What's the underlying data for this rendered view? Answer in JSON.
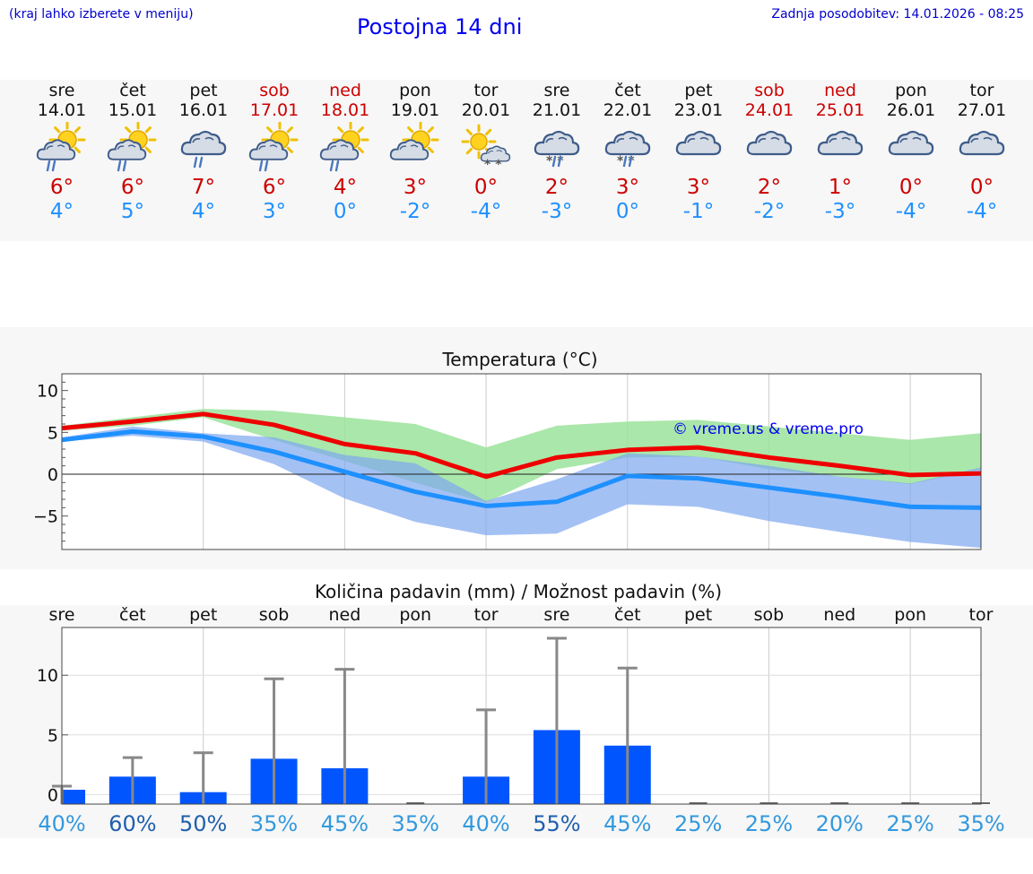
{
  "header": {
    "hint": "(kraj lahko izberete v meniju)",
    "title": "Postojna 14 dni",
    "updated": "Zadnja posodobitev: 14.01.2026 - 08:25"
  },
  "days": [
    {
      "name": "sre",
      "date": "14.01",
      "weekend": false,
      "icon": "sun-cloud-rain-icon",
      "hi": "6°",
      "lo": "4°"
    },
    {
      "name": "čet",
      "date": "15.01",
      "weekend": false,
      "icon": "sun-cloud-rain-icon",
      "hi": "6°",
      "lo": "5°"
    },
    {
      "name": "pet",
      "date": "16.01",
      "weekend": false,
      "icon": "cloud-rain-icon",
      "hi": "7°",
      "lo": "4°"
    },
    {
      "name": "sob",
      "date": "17.01",
      "weekend": true,
      "icon": "sun-cloud-rain-icon",
      "hi": "6°",
      "lo": "3°"
    },
    {
      "name": "ned",
      "date": "18.01",
      "weekend": true,
      "icon": "sun-cloud-rain-icon",
      "hi": "4°",
      "lo": "0°"
    },
    {
      "name": "pon",
      "date": "19.01",
      "weekend": false,
      "icon": "sun-cloud-icon",
      "hi": "3°",
      "lo": "-2°"
    },
    {
      "name": "tor",
      "date": "20.01",
      "weekend": false,
      "icon": "sun-cloud-snow-icon",
      "hi": "0°",
      "lo": "-4°"
    },
    {
      "name": "sre",
      "date": "21.01",
      "weekend": false,
      "icon": "cloud-sleet-icon",
      "hi": "2°",
      "lo": "-3°"
    },
    {
      "name": "čet",
      "date": "22.01",
      "weekend": false,
      "icon": "cloud-sleet-icon",
      "hi": "3°",
      "lo": "0°"
    },
    {
      "name": "pet",
      "date": "23.01",
      "weekend": false,
      "icon": "cloud-icon",
      "hi": "3°",
      "lo": "-1°"
    },
    {
      "name": "sob",
      "date": "24.01",
      "weekend": true,
      "icon": "cloud-icon",
      "hi": "2°",
      "lo": "-2°"
    },
    {
      "name": "ned",
      "date": "25.01",
      "weekend": true,
      "icon": "cloud-icon",
      "hi": "1°",
      "lo": "-3°"
    },
    {
      "name": "pon",
      "date": "26.01",
      "weekend": false,
      "icon": "cloud-icon",
      "hi": "0°",
      "lo": "-4°"
    },
    {
      "name": "tor",
      "date": "27.01",
      "weekend": false,
      "icon": "cloud-icon",
      "hi": "0°",
      "lo": "-4°"
    }
  ],
  "chart_data": [
    {
      "type": "line",
      "title": "Temperatura (°C)",
      "watermark": "© vreme.us & vreme.pro",
      "xlabel": "",
      "ylabel": "",
      "x": [
        0,
        1,
        2,
        3,
        4,
        5,
        6,
        7,
        8,
        9,
        10,
        11,
        12,
        13
      ],
      "ylim": [
        -9,
        12
      ],
      "yticks": [
        10,
        5,
        0,
        -5
      ],
      "ytick_labels": [
        "10",
        "5",
        "0",
        "−5"
      ],
      "grid": true,
      "series": [
        {
          "name": "max",
          "color": "#ee0000",
          "values": [
            5.5,
            6.3,
            7.2,
            5.9,
            3.6,
            2.5,
            -0.3,
            2.0,
            2.9,
            3.2,
            2.0,
            1.0,
            -0.1,
            0.1
          ]
        },
        {
          "name": "min",
          "color": "#1e90ff",
          "values": [
            4.1,
            5.1,
            4.5,
            2.7,
            0.3,
            -2.1,
            -3.8,
            -3.3,
            -0.2,
            -0.5,
            -1.6,
            -2.7,
            -3.9,
            -4.0
          ]
        }
      ],
      "bands": [
        {
          "name": "max-range",
          "color": "#9be39b",
          "upper": [
            5.8,
            6.8,
            7.8,
            7.6,
            6.8,
            6.0,
            3.2,
            5.8,
            6.3,
            6.5,
            5.7,
            4.9,
            4.1,
            4.9
          ],
          "lower": [
            5.2,
            5.8,
            6.8,
            4.1,
            1.6,
            -1.0,
            -3.4,
            0.6,
            2.0,
            2.1,
            0.6,
            -0.3,
            -1.2,
            0.6
          ]
        },
        {
          "name": "min-range",
          "color": "#7da6f0",
          "upper": [
            4.4,
            5.7,
            4.9,
            4.4,
            2.3,
            1.3,
            -3.2,
            -0.6,
            2.5,
            2.1,
            1.0,
            -0.3,
            -1.1,
            0.8
          ],
          "lower": [
            3.9,
            4.6,
            3.9,
            1.2,
            -2.9,
            -5.7,
            -7.3,
            -7.1,
            -3.6,
            -3.9,
            -5.6,
            -6.9,
            -8.1,
            -8.8
          ]
        }
      ]
    },
    {
      "type": "bar",
      "title": "Količina padavin (mm) / Možnost padavin (%)",
      "categories": [
        "sre",
        "čet",
        "pet",
        "sob",
        "ned",
        "pon",
        "tor",
        "sre",
        "čet",
        "pet",
        "sob",
        "ned",
        "pon",
        "tor"
      ],
      "ylim": [
        -0.8,
        14
      ],
      "yticks": [
        10,
        5,
        0
      ],
      "ytick_labels": [
        "10",
        "5",
        "0"
      ],
      "series": [
        {
          "name": "precipitation_mm",
          "color": "#0055ff",
          "values": [
            0.4,
            1.5,
            0.2,
            3.0,
            2.2,
            0,
            1.5,
            5.4,
            4.1,
            0,
            0,
            0,
            0,
            0
          ]
        },
        {
          "name": "precipitation_max_mm",
          "color": "#888888",
          "values": [
            0.7,
            3.1,
            3.5,
            9.7,
            10.5,
            0,
            7.1,
            13.1,
            10.6,
            0,
            0,
            0,
            0,
            0
          ]
        }
      ],
      "probability": [
        "40%",
        "60%",
        "50%",
        "35%",
        "45%",
        "35%",
        "40%",
        "55%",
        "45%",
        "25%",
        "25%",
        "20%",
        "25%",
        "35%"
      ],
      "probability_colors": [
        "#3399dd",
        "#1f5fae",
        "#1f5fae",
        "#3399dd",
        "#3399dd",
        "#3399dd",
        "#3399dd",
        "#1f5fae",
        "#3399dd",
        "#3399dd",
        "#3399dd",
        "#3399dd",
        "#3399dd",
        "#3399dd"
      ]
    }
  ]
}
